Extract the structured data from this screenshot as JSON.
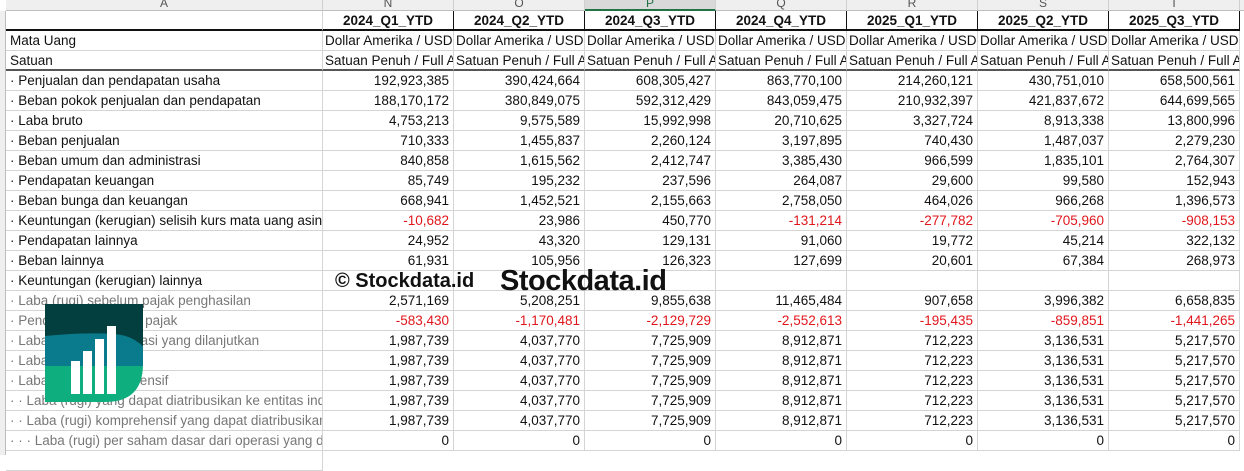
{
  "columns": {
    "letters": [
      "A",
      "N",
      "O",
      "P",
      "Q",
      "R",
      "S",
      "T"
    ],
    "selected": "P"
  },
  "periods": [
    "2024_Q1_YTD",
    "2024_Q2_YTD",
    "2024_Q3_YTD",
    "2024_Q4_YTD",
    "2025_Q1_YTD",
    "2025_Q2_YTD",
    "2025_Q3_YTD"
  ],
  "meta_rows": [
    {
      "label": "Mata Uang",
      "value": "Dollar Amerika / USD"
    },
    {
      "label": "Satuan",
      "value": "Satuan Penuh / Full Amount"
    }
  ],
  "rows": [
    {
      "label": "· Penjualan dan pendapatan usaha",
      "values": [
        "192,923,385",
        "390,424,664",
        "608,305,427",
        "863,770,100",
        "214,260,121",
        "430,751,010",
        "658,500,561"
      ]
    },
    {
      "label": "· Beban pokok penjualan dan pendapatan",
      "values": [
        "188,170,172",
        "380,849,075",
        "592,312,429",
        "843,059,475",
        "210,932,397",
        "421,837,672",
        "644,699,565"
      ]
    },
    {
      "label": "· Laba bruto",
      "values": [
        "4,753,213",
        "9,575,589",
        "15,992,998",
        "20,710,625",
        "3,327,724",
        "8,913,338",
        "13,800,996"
      ]
    },
    {
      "label": "· Beban penjualan",
      "values": [
        "710,333",
        "1,455,837",
        "2,260,124",
        "3,197,895",
        "740,430",
        "1,487,037",
        "2,279,230"
      ]
    },
    {
      "label": "· Beban umum dan administrasi",
      "values": [
        "840,858",
        "1,615,562",
        "2,412,747",
        "3,385,430",
        "966,599",
        "1,835,101",
        "2,764,307"
      ]
    },
    {
      "label": "· Pendapatan keuangan",
      "values": [
        "85,749",
        "195,232",
        "237,596",
        "264,087",
        "29,600",
        "99,580",
        "152,943"
      ]
    },
    {
      "label": "· Beban bunga dan keuangan",
      "values": [
        "668,941",
        "1,452,521",
        "2,155,663",
        "2,758,050",
        "464,026",
        "966,268",
        "1,396,573"
      ]
    },
    {
      "label": "· Keuntungan (kerugian) selisih kurs mata uang asing",
      "values": [
        "-10,682",
        "23,986",
        "450,770",
        "-131,214",
        "-277,782",
        "-705,960",
        "-908,153"
      ]
    },
    {
      "label": "· Pendapatan lainnya",
      "values": [
        "24,952",
        "43,320",
        "129,131",
        "91,060",
        "19,772",
        "45,214",
        "322,132"
      ]
    },
    {
      "label": "· Beban lainnya",
      "values": [
        "61,931",
        "105,956",
        "126,323",
        "127,699",
        "20,601",
        "67,384",
        "268,973"
      ]
    },
    {
      "label": "· Keuntungan (kerugian) lainnya",
      "values": [
        "",
        "",
        "",
        "",
        "",
        "",
        ""
      ]
    },
    {
      "label": "· Laba (rugi) sebelum pajak penghasilan",
      "gray": true,
      "values": [
        "2,571,169",
        "5,208,251",
        "9,855,638",
        "11,465,484",
        "907,658",
        "3,996,382",
        "6,658,835"
      ]
    },
    {
      "label": "· Pendapatan (beban) pajak",
      "gray": true,
      "values": [
        "-583,430",
        "-1,170,481",
        "-2,129,729",
        "-2,552,613",
        "-195,435",
        "-859,851",
        "-1,441,265"
      ]
    },
    {
      "label": "· Laba (rugi) dari operasi yang dilanjutkan",
      "gray": true,
      "values": [
        "1,987,739",
        "4,037,770",
        "7,725,909",
        "8,912,871",
        "712,223",
        "3,136,531",
        "5,217,570"
      ]
    },
    {
      "label": "· Laba (rugi)",
      "gray": true,
      "values": [
        "1,987,739",
        "4,037,770",
        "7,725,909",
        "8,912,871",
        "712,223",
        "3,136,531",
        "5,217,570"
      ]
    },
    {
      "label": "· Laba (rugi) komprehensif",
      "gray": true,
      "values": [
        "1,987,739",
        "4,037,770",
        "7,725,909",
        "8,912,871",
        "712,223",
        "3,136,531",
        "5,217,570"
      ]
    },
    {
      "label": "· · Laba (rugi) yang dapat diatribusikan ke entitas induk",
      "gray": true,
      "values": [
        "1,987,739",
        "4,037,770",
        "7,725,909",
        "8,912,871",
        "712,223",
        "3,136,531",
        "5,217,570"
      ]
    },
    {
      "label": "· · Laba (rugi) komprehensif yang dapat diatribusikan",
      "gray": true,
      "values": [
        "1,987,739",
        "4,037,770",
        "7,725,909",
        "8,912,871",
        "712,223",
        "3,136,531",
        "5,217,570"
      ]
    },
    {
      "label": "· · · Laba (rugi) per saham dasar dari operasi yang dilanjutkan",
      "gray": true,
      "values": [
        "0",
        "0",
        "0",
        "0",
        "0",
        "0",
        "0"
      ]
    }
  ],
  "watermark": {
    "copyright": "© Stockdata.id",
    "brand": "Stockdata.id"
  },
  "colors": {
    "negative": "#e0161c",
    "logo_dark": "#033f3f",
    "logo_teal": "#0a7b8c",
    "logo_green": "#0fae7e",
    "selected_col": "#217346"
  }
}
